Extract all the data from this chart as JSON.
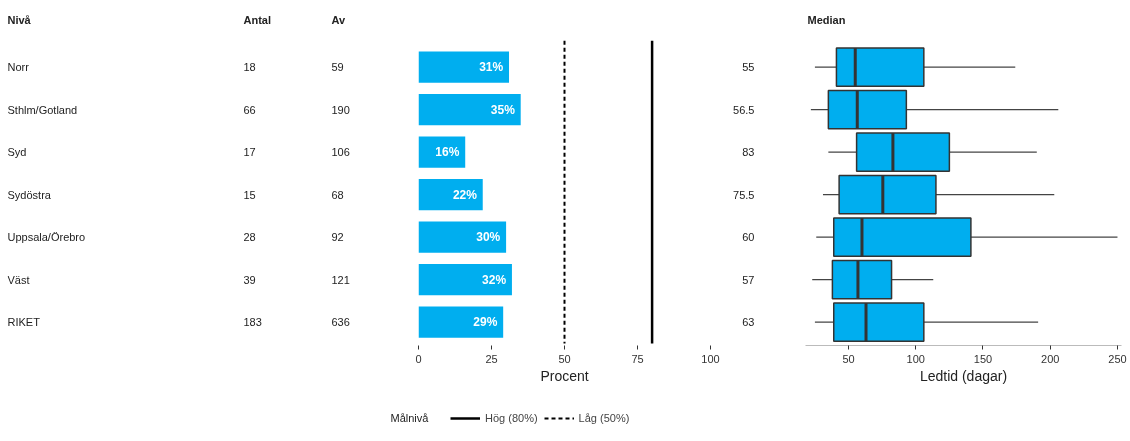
{
  "chart_data": [
    {
      "type": "other",
      "ylabel": "Nivå",
      "categories": [
        "Norr",
        "Sthlm/Gotland",
        "Syd",
        "Sydöstra",
        "Uppsala/Örebro",
        "Väst",
        "RIKET"
      ],
      "series": [
        {
          "name": "Antal",
          "values": [
            18,
            66,
            17,
            15,
            28,
            39,
            183
          ]
        },
        {
          "name": "Av",
          "values": [
            59,
            190,
            106,
            68,
            92,
            121,
            636
          ]
        }
      ],
      "data_labels": true
    },
    {
      "type": "bar",
      "orientation": "horizontal",
      "categories": [
        null,
        null,
        null,
        null,
        null,
        null,
        null
      ],
      "values": [
        31,
        35,
        16,
        22,
        30,
        32,
        29
      ],
      "color": "#00aeef",
      "value_labels": [
        "31%",
        "35%",
        "16%",
        "22%",
        "30%",
        "32%",
        "29%"
      ],
      "xlim": [
        0,
        100
      ],
      "xticks": [
        0,
        25,
        50,
        75,
        100
      ],
      "xlabel": "Procent",
      "tick_labels": "x",
      "grid": false,
      "ref_lines": [
        {
          "axis": "x",
          "value": 80,
          "label": "Hög (80%)",
          "color": "#000000",
          "line_style": "solid"
        },
        {
          "axis": "x",
          "value": 50,
          "label": "Låg (50%)",
          "color": "#000000",
          "line_style": "dashed"
        }
      ],
      "legend_title": "Målnivå",
      "legend": "bottom"
    },
    {
      "type": "box",
      "orientation": "horizontal",
      "ylabel": "Median",
      "categories": [
        "55",
        "56.5",
        "83",
        "75.5",
        "60",
        "57",
        "63"
      ],
      "color": "#00aeef",
      "boxes": [
        {
          "low": 25,
          "q1": 41,
          "median": 55,
          "q3": 106,
          "high": 174
        },
        {
          "low": 22,
          "q1": 35,
          "median": 56.5,
          "q3": 93,
          "high": 206
        },
        {
          "low": 35,
          "q1": 56,
          "median": 83,
          "q3": 125,
          "high": 190
        },
        {
          "low": 31,
          "q1": 43,
          "median": 75.5,
          "q3": 115,
          "high": 203
        },
        {
          "low": 26,
          "q1": 39,
          "median": 60,
          "q3": 141,
          "high": 250
        },
        {
          "low": 23,
          "q1": 38,
          "median": 57,
          "q3": 82,
          "high": 113
        },
        {
          "low": 25,
          "q1": 39,
          "median": 63,
          "q3": 106,
          "high": 191
        }
      ],
      "xlim": [
        18,
        253
      ],
      "xticks": [
        50,
        100,
        150,
        200,
        250
      ],
      "xlabel": "Ledtid (dagar)",
      "grid": false
    }
  ]
}
